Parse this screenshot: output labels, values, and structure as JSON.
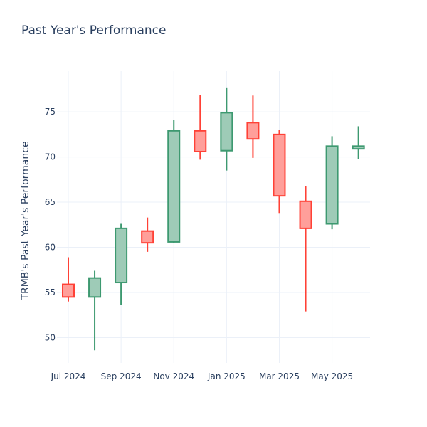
{
  "chart_data": {
    "type": "candlestick",
    "title": "Past Year's Performance",
    "ylabel": "TRMB's Past Year's Performance",
    "xlabel": "",
    "ylim": [
      47.2,
      79.5
    ],
    "yticks": [
      50,
      55,
      60,
      65,
      70,
      75
    ],
    "xticks": [
      {
        "label": "Jul 2024",
        "index": 0
      },
      {
        "label": "Sep 2024",
        "index": 2
      },
      {
        "label": "Nov 2024",
        "index": 4
      },
      {
        "label": "Jan 2025",
        "index": 6
      },
      {
        "label": "Mar 2025",
        "index": 8
      },
      {
        "label": "May 2025",
        "index": 10
      }
    ],
    "colors": {
      "increasing_line": "#3d9970",
      "increasing_fill": "#9ecbb7",
      "decreasing_line": "#ff4136",
      "decreasing_fill": "#ff9f9a"
    },
    "candles": [
      {
        "date": "Jul 2024",
        "open": 55.9,
        "high": 58.9,
        "low": 54.0,
        "close": 54.5
      },
      {
        "date": "Aug 2024",
        "open": 54.5,
        "high": 57.4,
        "low": 48.6,
        "close": 56.6
      },
      {
        "date": "Sep 2024",
        "open": 56.1,
        "high": 62.6,
        "low": 53.6,
        "close": 62.1
      },
      {
        "date": "Oct 2024",
        "open": 61.8,
        "high": 63.3,
        "low": 59.5,
        "close": 60.5
      },
      {
        "date": "Nov 2024",
        "open": 60.6,
        "high": 74.1,
        "low": 60.5,
        "close": 72.9
      },
      {
        "date": "Dec 2024",
        "open": 72.9,
        "high": 76.9,
        "low": 69.7,
        "close": 70.6
      },
      {
        "date": "Jan 2025",
        "open": 70.7,
        "high": 77.7,
        "low": 68.5,
        "close": 74.9
      },
      {
        "date": "Feb 2025",
        "open": 73.8,
        "high": 76.8,
        "low": 69.9,
        "close": 72.0
      },
      {
        "date": "Mar 2025",
        "open": 72.5,
        "high": 73.0,
        "low": 63.8,
        "close": 65.7
      },
      {
        "date": "Apr 2025",
        "open": 65.1,
        "high": 66.8,
        "low": 52.9,
        "close": 62.1
      },
      {
        "date": "May 2025",
        "open": 62.6,
        "high": 72.3,
        "low": 62.0,
        "close": 71.2
      },
      {
        "date": "Jun 2025",
        "open": 70.9,
        "high": 73.4,
        "low": 69.8,
        "close": 71.2
      }
    ]
  }
}
